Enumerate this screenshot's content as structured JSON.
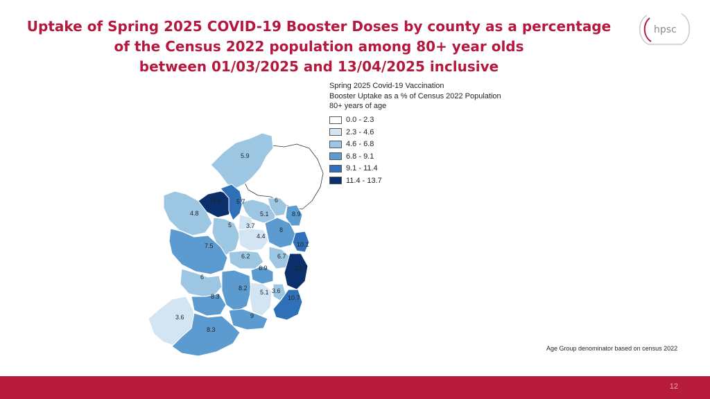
{
  "title": {
    "line1": "Uptake of Spring 2025 COVID-19 Booster Doses by county as a percentage",
    "line2": "of the Census 2022 population among 80+ year olds",
    "line3": "between 01/03/2025 and 13/04/2025 inclusive"
  },
  "logo": {
    "text": "hpsc"
  },
  "legend": {
    "title_lines": [
      "Spring 2025 Covid-19 Vaccination",
      "Booster Uptake as a % of Census 2022 Population",
      "80+ years of age"
    ],
    "items": [
      {
        "label": "0.0 - 2.3",
        "color": "#ffffff"
      },
      {
        "label": "2.3 - 4.6",
        "color": "#d3e4f3"
      },
      {
        "label": "4.6 - 6.8",
        "color": "#9dc6e2"
      },
      {
        "label": "6.8 - 9.1",
        "color": "#5b9bcf"
      },
      {
        "label": "9.1 - 11.4",
        "color": "#2f70b9"
      },
      {
        "label": "11.4 - 13.7",
        "color": "#0a2f6b"
      }
    ]
  },
  "map_labels": [
    "5.9",
    "6",
    "11.5",
    "4.8",
    "5.7",
    "5.1",
    "8.9",
    "5",
    "3.7",
    "8",
    "4.4",
    "10.1",
    "7.5",
    "6.2",
    "6.7",
    "6.9",
    "13.7",
    "6",
    "8.2",
    "5.1",
    "3.6",
    "8.3",
    "10.7",
    "3.6",
    "9",
    "8.3"
  ],
  "note": "Age Group denominator based on census 2022",
  "page_number": "12"
}
